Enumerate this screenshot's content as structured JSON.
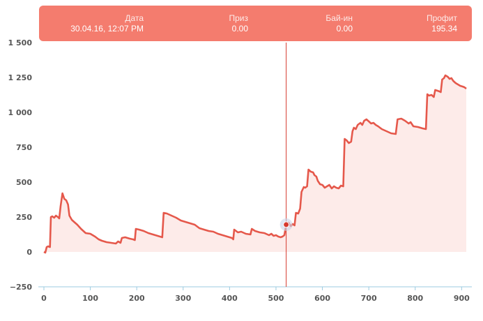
{
  "colors": {
    "accent": "#f47c6e",
    "line": "#e5584b",
    "area": "#fdebe9",
    "cursor": "#d63a2e",
    "axis": "#9ccbe0",
    "grid": "#e6e6e6"
  },
  "tooltip": {
    "date_label": "Дата",
    "date_value": "30.04.16, 12:07 PM",
    "prize_label": "Приз",
    "prize_value": "0.00",
    "buyin_label": "Бай-ин",
    "buyin_value": "0.00",
    "profit_label": "Профит",
    "profit_value": "195.34"
  },
  "chart_data": {
    "type": "area",
    "xlim": [
      0,
      910
    ],
    "ylim": [
      -250,
      1500
    ],
    "x_ticks": [
      0,
      100,
      200,
      300,
      400,
      500,
      600,
      700,
      800,
      900
    ],
    "y_ticks": [
      -250,
      0,
      250,
      500,
      750,
      1000,
      1250,
      1500
    ],
    "y_tick_labels": [
      "−250",
      "0",
      "250",
      "500",
      "750",
      "1 000",
      "1 250",
      "1 500"
    ],
    "grid": false,
    "highlight": {
      "x": 522,
      "y": 195.34
    },
    "points": [
      [
        0,
        0
      ],
      [
        3,
        -5
      ],
      [
        6,
        35
      ],
      [
        9,
        40
      ],
      [
        13,
        35
      ],
      [
        15,
        250
      ],
      [
        18,
        255
      ],
      [
        22,
        245
      ],
      [
        26,
        260
      ],
      [
        30,
        250
      ],
      [
        33,
        240
      ],
      [
        36,
        330
      ],
      [
        40,
        420
      ],
      [
        44,
        380
      ],
      [
        48,
        370
      ],
      [
        52,
        340
      ],
      [
        55,
        260
      ],
      [
        60,
        230
      ],
      [
        65,
        215
      ],
      [
        72,
        195
      ],
      [
        80,
        165
      ],
      [
        90,
        135
      ],
      [
        100,
        130
      ],
      [
        110,
        110
      ],
      [
        118,
        90
      ],
      [
        125,
        80
      ],
      [
        135,
        70
      ],
      [
        145,
        65
      ],
      [
        155,
        60
      ],
      [
        160,
        75
      ],
      [
        165,
        65
      ],
      [
        168,
        100
      ],
      [
        175,
        105
      ],
      [
        185,
        95
      ],
      [
        192,
        90
      ],
      [
        196,
        85
      ],
      [
        198,
        165
      ],
      [
        205,
        160
      ],
      [
        215,
        150
      ],
      [
        225,
        135
      ],
      [
        235,
        125
      ],
      [
        245,
        115
      ],
      [
        255,
        105
      ],
      [
        258,
        280
      ],
      [
        265,
        275
      ],
      [
        275,
        260
      ],
      [
        285,
        245
      ],
      [
        295,
        225
      ],
      [
        305,
        215
      ],
      [
        315,
        205
      ],
      [
        325,
        195
      ],
      [
        335,
        170
      ],
      [
        345,
        160
      ],
      [
        355,
        150
      ],
      [
        365,
        145
      ],
      [
        375,
        130
      ],
      [
        385,
        120
      ],
      [
        395,
        110
      ],
      [
        405,
        100
      ],
      [
        408,
        90
      ],
      [
        410,
        160
      ],
      [
        418,
        140
      ],
      [
        425,
        145
      ],
      [
        435,
        130
      ],
      [
        445,
        125
      ],
      [
        448,
        165
      ],
      [
        455,
        150
      ],
      [
        465,
        140
      ],
      [
        475,
        135
      ],
      [
        485,
        120
      ],
      [
        490,
        130
      ],
      [
        495,
        115
      ],
      [
        500,
        120
      ],
      [
        505,
        110
      ],
      [
        510,
        105
      ],
      [
        514,
        110
      ],
      [
        518,
        120
      ],
      [
        522,
        195.34
      ],
      [
        527,
        210
      ],
      [
        532,
        185
      ],
      [
        536,
        200
      ],
      [
        540,
        190
      ],
      [
        543,
        280
      ],
      [
        548,
        275
      ],
      [
        552,
        310
      ],
      [
        555,
        430
      ],
      [
        560,
        465
      ],
      [
        563,
        460
      ],
      [
        567,
        470
      ],
      [
        570,
        590
      ],
      [
        575,
        575
      ],
      [
        580,
        570
      ],
      [
        583,
        550
      ],
      [
        587,
        540
      ],
      [
        590,
        510
      ],
      [
        595,
        485
      ],
      [
        600,
        480
      ],
      [
        605,
        460
      ],
      [
        610,
        470
      ],
      [
        615,
        480
      ],
      [
        620,
        455
      ],
      [
        625,
        470
      ],
      [
        630,
        460
      ],
      [
        635,
        455
      ],
      [
        640,
        475
      ],
      [
        645,
        470
      ],
      [
        648,
        810
      ],
      [
        652,
        800
      ],
      [
        657,
        780
      ],
      [
        662,
        790
      ],
      [
        665,
        865
      ],
      [
        668,
        890
      ],
      [
        672,
        880
      ],
      [
        676,
        910
      ],
      [
        682,
        925
      ],
      [
        686,
        910
      ],
      [
        690,
        940
      ],
      [
        695,
        950
      ],
      [
        700,
        935
      ],
      [
        705,
        920
      ],
      [
        710,
        925
      ],
      [
        715,
        910
      ],
      [
        720,
        900
      ],
      [
        728,
        880
      ],
      [
        738,
        865
      ],
      [
        748,
        850
      ],
      [
        758,
        845
      ],
      [
        762,
        950
      ],
      [
        770,
        955
      ],
      [
        778,
        940
      ],
      [
        786,
        920
      ],
      [
        790,
        930
      ],
      [
        796,
        900
      ],
      [
        806,
        895
      ],
      [
        816,
        885
      ],
      [
        823,
        880
      ],
      [
        826,
        1130
      ],
      [
        830,
        1120
      ],
      [
        835,
        1125
      ],
      [
        840,
        1110
      ],
      [
        843,
        1160
      ],
      [
        848,
        1155
      ],
      [
        852,
        1150
      ],
      [
        855,
        1145
      ],
      [
        858,
        1235
      ],
      [
        862,
        1245
      ],
      [
        865,
        1265
      ],
      [
        870,
        1255
      ],
      [
        874,
        1240
      ],
      [
        878,
        1245
      ],
      [
        882,
        1225
      ],
      [
        887,
        1210
      ],
      [
        892,
        1200
      ],
      [
        897,
        1190
      ],
      [
        902,
        1185
      ],
      [
        906,
        1180
      ],
      [
        910,
        1170
      ]
    ]
  }
}
